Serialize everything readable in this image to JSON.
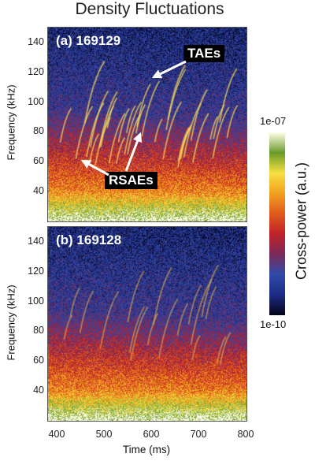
{
  "chart_data": {
    "type": "heatmap",
    "title": "Density Fluctuations",
    "xlabel": "Time (ms)",
    "ylabel": "Frequency (kHz)",
    "xlim": [
      380,
      800
    ],
    "ylim": [
      20,
      150
    ],
    "xticks": [
      400,
      500,
      600,
      700,
      800
    ],
    "yticks": [
      40,
      60,
      80,
      100,
      120,
      140
    ],
    "colorbar": {
      "label": "Cross-power (a.u.)",
      "max_label": "1e-07",
      "min_label": "1e-10",
      "scale": "log",
      "colors": [
        "#05051a",
        "#1c2a82",
        "#2f4aa8",
        "#7a2a5a",
        "#c0222a",
        "#e05a1c",
        "#f0a020",
        "#f7e040",
        "#6a9a2a",
        "#ffffe8"
      ]
    },
    "panels": [
      {
        "label": "(a) 169129",
        "annotations": [
          {
            "text": "TAEs",
            "points_to": [
              {
                "x": 580,
                "y": 115
              }
            ]
          },
          {
            "text": "RSAEs",
            "points_to": [
              {
                "x": 445,
                "y": 62
              },
              {
                "x": 575,
                "y": 79
              }
            ]
          }
        ]
      },
      {
        "label": "(b) 169128",
        "annotations": []
      }
    ]
  }
}
